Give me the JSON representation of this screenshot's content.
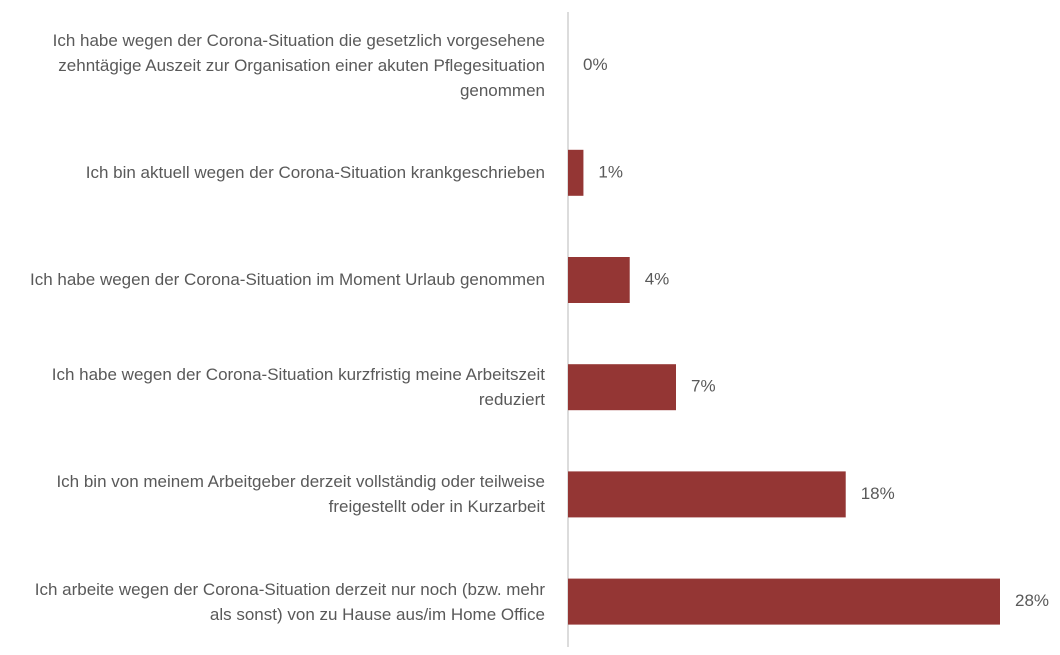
{
  "chart_data": {
    "type": "hbar",
    "categories": [
      "Ich habe wegen der Corona-Situation die gesetzlich vorgesehene zehntägige Auszeit zur Organisation einer akuten Pflegesituation genommen",
      "Ich bin aktuell wegen der Corona-Situation krankgeschrieben",
      "Ich habe wegen der Corona-Situation im Moment Urlaub genommen",
      "Ich habe wegen der Corona-Situation kurzfristig meine Arbeitszeit reduziert",
      "Ich bin von meinem Arbeitgeber derzeit vollständig oder teilweise freigestellt oder in Kurzarbeit",
      "Ich arbeite wegen der Corona-Situation derzeit nur noch (bzw. mehr als sonst) von zu Hause aus/im Home Office"
    ],
    "values": [
      0,
      1,
      4,
      7,
      18,
      28
    ],
    "value_labels": [
      "0%",
      "1%",
      "4%",
      "7%",
      "18%",
      "28%"
    ],
    "color": "#943634"
  }
}
